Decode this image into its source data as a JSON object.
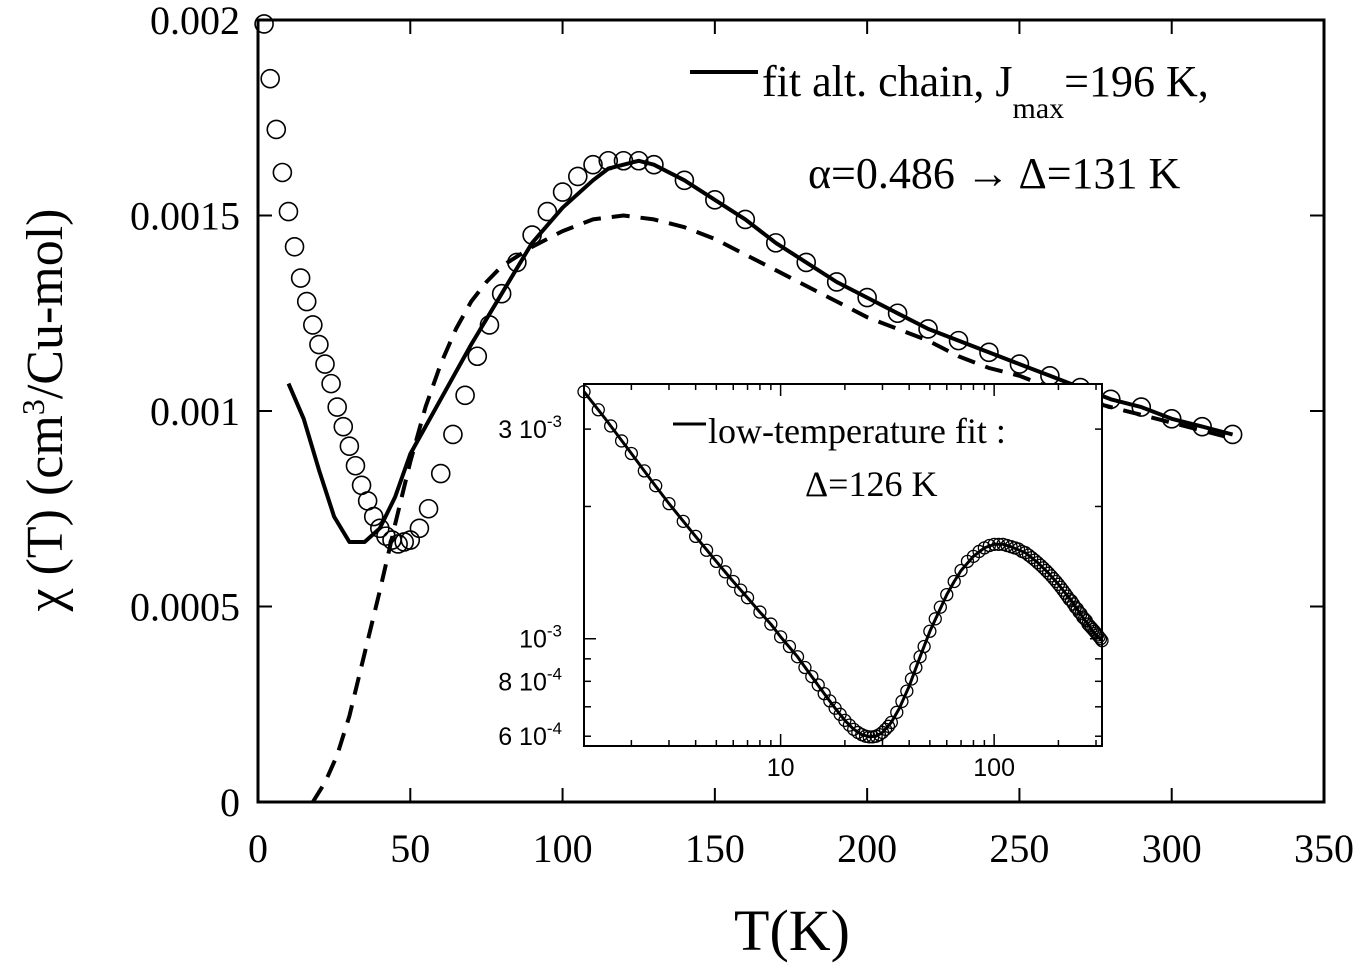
{
  "chart_data": [
    {
      "type": "line",
      "xlabel": "T(K)",
      "ylabel_parts": {
        "pre": "χ (T) (cm",
        "sup": "3",
        "post": "/Cu-mol)"
      },
      "xlim": [
        0,
        350
      ],
      "ylim": [
        0,
        0.002
      ],
      "xticks": [
        0,
        50,
        100,
        150,
        200,
        250,
        300,
        350
      ],
      "yticks": [
        0,
        0.0005,
        0.001,
        0.0015,
        0.002
      ],
      "ytick_labels": [
        "0",
        "0.0005",
        "0.001",
        "0.0015",
        "0.002"
      ],
      "legend": {
        "line1_pre": "fit alt. chain, J",
        "line1_sub": "max",
        "line1_post": "=196 K,",
        "line2": "α=0.486 → Δ=131 K"
      },
      "series": [
        {
          "style": "open-circles",
          "x": [
            2.0,
            4.0,
            6.0,
            8.0,
            10.0,
            12.0,
            14.0,
            16.0,
            18.0,
            20.0,
            22.0,
            24.0,
            26.0,
            28.0,
            30.0,
            32.0,
            34.0,
            36.0,
            38.0,
            40.0,
            42.0,
            44.0,
            46.0,
            48.0,
            50.0,
            53.0,
            56.0,
            60.0,
            64.0,
            68.0,
            72.0,
            76.0,
            80.0,
            85.0,
            90.0,
            95.0,
            100.0,
            105.0,
            110.0,
            115.0,
            120.0,
            125.0,
            130.0,
            140.0,
            150.0,
            160.0,
            170.0,
            180.0,
            190.0,
            200.0,
            210.0,
            220.0,
            230.0,
            240.0,
            250.0,
            260.0,
            270.0,
            280.0,
            290.0,
            300.0,
            310.0,
            320.0
          ],
          "y": [
            0.00199,
            0.00185,
            0.00172,
            0.00161,
            0.00151,
            0.00142,
            0.00134,
            0.00128,
            0.00122,
            0.00117,
            0.00112,
            0.00107,
            0.00101,
            0.00096,
            0.00091,
            0.00086,
            0.00081,
            0.00077,
            0.00073,
            0.0007,
            0.00068,
            0.00067,
            0.00066,
            0.000665,
            0.00067,
            0.0007,
            0.00075,
            0.00084,
            0.00094,
            0.00104,
            0.00114,
            0.00122,
            0.0013,
            0.00138,
            0.00145,
            0.00151,
            0.00156,
            0.0016,
            0.00163,
            0.00164,
            0.00164,
            0.00164,
            0.00163,
            0.00159,
            0.00154,
            0.00149,
            0.00143,
            0.00138,
            0.00133,
            0.00129,
            0.00125,
            0.00121,
            0.00118,
            0.00115,
            0.00112,
            0.00109,
            0.00106,
            0.00103,
            0.00101,
            0.00098,
            0.00096,
            0.00094
          ]
        },
        {
          "style": "solid",
          "x": [
            10.0,
            15.0,
            20.0,
            25.0,
            30.0,
            35.0,
            40.0,
            45.0,
            50.0,
            60.0,
            70.0,
            80.0,
            90.0,
            100.0,
            110.0,
            115.0,
            120.0,
            125.0,
            130.0,
            140.0,
            150.0,
            160.0,
            170.0,
            180.0,
            190.0,
            200.0,
            210.0,
            220.0,
            230.0,
            240.0,
            250.0,
            260.0,
            270.0,
            280.0,
            290.0,
            300.0,
            310.0,
            320.0
          ],
          "y": [
            0.00107,
            0.00098,
            0.00085,
            0.00073,
            0.000665,
            0.000665,
            0.0007,
            0.00078,
            0.00089,
            0.00103,
            0.00117,
            0.0013,
            0.00143,
            0.00152,
            0.00159,
            0.00162,
            0.00163,
            0.00164,
            0.00163,
            0.00159,
            0.00154,
            0.00149,
            0.00143,
            0.00138,
            0.00133,
            0.00129,
            0.00125,
            0.00121,
            0.00118,
            0.00115,
            0.00112,
            0.00109,
            0.00106,
            0.00103,
            0.00101,
            0.00098,
            0.00096,
            0.00094
          ]
        },
        {
          "style": "dashed",
          "x": [
            18.0,
            22.0,
            26.0,
            30.0,
            35.0,
            40.0,
            45.0,
            50.0,
            55.0,
            60.0,
            65.0,
            70.0,
            75.0,
            80.0,
            90.0,
            100.0,
            110.0,
            120.0,
            130.0,
            140.0,
            150.0,
            160.0,
            170.0,
            180.0,
            190.0,
            200.0,
            210.0,
            220.0,
            230.0,
            240.0,
            250.0,
            260.0,
            270.0,
            280.0,
            290.0,
            300.0,
            310.0,
            320.0
          ],
          "y": [
            0.0,
            5e-05,
            0.00012,
            0.00022,
            0.00038,
            0.00054,
            0.00071,
            0.00087,
            0.00101,
            0.00112,
            0.00121,
            0.00128,
            0.00133,
            0.00137,
            0.00142,
            0.00146,
            0.00149,
            0.0015,
            0.00149,
            0.00147,
            0.00144,
            0.0014,
            0.00136,
            0.00132,
            0.00128,
            0.00124,
            0.00121,
            0.00118,
            0.00114,
            0.00111,
            0.00109,
            0.00106,
            0.00103,
            0.00101,
            0.00099,
            0.00097,
            0.00095,
            0.00093
          ]
        }
      ]
    },
    {
      "type": "line",
      "xscale": "log",
      "yscale": "log",
      "xlim": [
        1.2,
        320
      ],
      "ylim": [
        0.00057,
        0.0038
      ],
      "xticks": [
        10,
        100
      ],
      "xtick_labels": [
        "10",
        "100"
      ],
      "yticks": [
        0.0006,
        0.0008,
        0.001,
        0.003
      ],
      "ytick_labels": [
        {
          "mant": "6 10",
          "exp": "-4"
        },
        {
          "mant": "8 10",
          "exp": "-4"
        },
        {
          "mant": "10",
          "exp": "-3"
        },
        {
          "mant": "3 10",
          "exp": "-3"
        }
      ],
      "legend": {
        "line1": "low-temperature fit :",
        "line2": "Δ=126 K"
      },
      "series": [
        {
          "style": "open-circles",
          "x": [
            1.2,
            1.4,
            1.6,
            1.8,
            2.0,
            2.3,
            2.6,
            3.0,
            3.5,
            4.0,
            4.5,
            5.0,
            5.5,
            6.0,
            6.5,
            7.0,
            8.0,
            9.0,
            10.0,
            11.0,
            12.0,
            13.0,
            14.0,
            15.0,
            16.0,
            17.0,
            18.0,
            19.0,
            20.0,
            21.0,
            22.0,
            23.0,
            24.0,
            25.0,
            26.0,
            27.0,
            28.0,
            29.0,
            30.0,
            31.0,
            32.0,
            33.0,
            35.0,
            37.0,
            39.0,
            41.0,
            43.0,
            45.0,
            47.0,
            50.0,
            53.0,
            56.0,
            60.0,
            65.0,
            70.0,
            75.0,
            80.0,
            85.0,
            90.0,
            95.0,
            100.0,
            105.0,
            110.0,
            115.0,
            120.0,
            125.0,
            130.0,
            135.0,
            140.0,
            145.0,
            150.0,
            155.0,
            160.0,
            165.0,
            170.0,
            175.0,
            180.0,
            185.0,
            190.0,
            195.0,
            200.0,
            205.0,
            210.0,
            215.0,
            220.0,
            225.0,
            230.0,
            235.0,
            240.0,
            245.0,
            250.0,
            255.0,
            260.0,
            265.0,
            270.0,
            275.0,
            280.0,
            285.0,
            290.0,
            295.0,
            300.0,
            305.0,
            310.0,
            315.0,
            320.0
          ],
          "y": [
            0.00365,
            0.00332,
            0.00305,
            0.00282,
            0.00264,
            0.00241,
            0.00223,
            0.00203,
            0.00185,
            0.00171,
            0.00159,
            0.0015,
            0.00142,
            0.00135,
            0.00129,
            0.00124,
            0.00115,
            0.00108,
            0.00101,
            0.00096,
            0.00091,
            0.00086,
            0.00082,
            0.000785,
            0.00075,
            0.000722,
            0.000695,
            0.000673,
            0.000652,
            0.000636,
            0.000622,
            0.000612,
            0.000605,
            0.0006,
            0.000598,
            0.000598,
            0.0006,
            0.000605,
            0.000612,
            0.000622,
            0.000632,
            0.000645,
            0.00068,
            0.00072,
            0.00076,
            0.00081,
            0.00086,
            0.00091,
            0.00096,
            0.00104,
            0.00111,
            0.00118,
            0.00126,
            0.00135,
            0.00143,
            0.0015,
            0.00154,
            0.00158,
            0.00161,
            0.00163,
            0.00164,
            0.00164,
            0.00164,
            0.00163,
            0.00162,
            0.00161,
            0.0016,
            0.00158,
            0.00157,
            0.00155,
            0.00153,
            0.00151,
            0.00149,
            0.00147,
            0.00145,
            0.00143,
            0.00141,
            0.00139,
            0.00137,
            0.00135,
            0.00133,
            0.00131,
            0.00129,
            0.00127,
            0.00125,
            0.00123,
            0.00122,
            0.0012,
            0.00118,
            0.00117,
            0.00115,
            0.00114,
            0.00112,
            0.00111,
            0.0011,
            0.00108,
            0.00107,
            0.00106,
            0.00105,
            0.00104,
            0.00103,
            0.00102,
            0.00101,
            0.001,
            0.00099
          ]
        },
        {
          "style": "solid",
          "x": [
            1.2,
            1.5,
            2.0,
            2.5,
            3.0,
            4.0,
            5.0,
            6.0,
            7.0,
            8.0,
            9.0,
            10.0,
            12.0,
            14.0,
            16.0,
            18.0,
            20.0,
            22.0,
            24.0,
            26.0,
            28.0,
            30.0,
            33.0,
            36.0,
            40.0,
            45.0,
            50.0,
            55.0,
            60.0,
            65.0,
            70.0,
            80.0,
            90.0,
            100.0,
            110.0,
            120.0,
            140.0,
            160.0,
            180.0,
            200.0,
            230.0,
            260.0,
            290.0,
            320.0
          ],
          "y": [
            0.00365,
            0.00318,
            0.00264,
            0.00228,
            0.00203,
            0.00171,
            0.0015,
            0.00135,
            0.00124,
            0.00115,
            0.00108,
            0.00101,
            0.00091,
            0.00082,
            0.00075,
            0.000695,
            0.000652,
            0.000622,
            0.000605,
            0.000598,
            0.0006,
            0.000612,
            0.000645,
            0.000695,
            0.00078,
            0.00091,
            0.00104,
            0.00115,
            0.00126,
            0.00135,
            0.00143,
            0.00154,
            0.00161,
            0.00164,
            0.00164,
            0.00162,
            0.00157,
            0.00149,
            0.00141,
            0.00133,
            0.00122,
            0.00112,
            0.00104,
            0.00099
          ]
        }
      ]
    }
  ]
}
